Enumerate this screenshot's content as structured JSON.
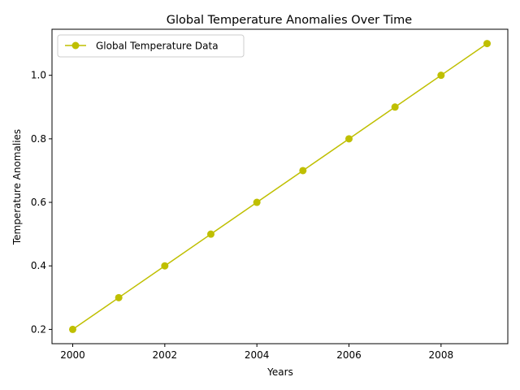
{
  "chart_data": {
    "type": "line",
    "title": "Global Temperature Anomalies Over Time",
    "xlabel": "Years",
    "ylabel": "Temperature Anomalies",
    "xlim": [
      1999.55,
      2009.45
    ],
    "ylim": [
      0.155,
      1.145
    ],
    "xticks": [
      2000,
      2002,
      2004,
      2006,
      2008
    ],
    "yticks": [
      0.2,
      0.4,
      0.6,
      0.8,
      1.0
    ],
    "ytick_labels": [
      "0.2",
      "0.4",
      "0.6",
      "0.8",
      "1.0"
    ],
    "grid": false,
    "legend_position": "top-left",
    "series": [
      {
        "name": "Global Temperature Data",
        "color": "#bfbf00",
        "marker": "circle",
        "x": [
          2000,
          2001,
          2002,
          2003,
          2004,
          2005,
          2006,
          2007,
          2008,
          2009
        ],
        "values": [
          0.2,
          0.3,
          0.4,
          0.5,
          0.6,
          0.7,
          0.8,
          0.9,
          1.0,
          1.1
        ]
      }
    ]
  }
}
